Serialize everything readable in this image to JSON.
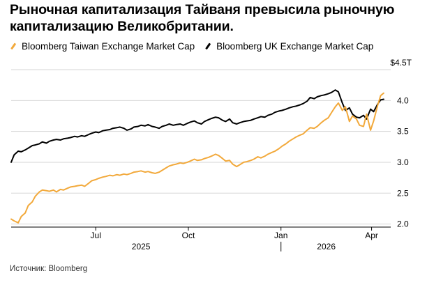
{
  "title": "Рыночная капитализация Тайваня превысила рыночную капитализацию Великобритании.",
  "source": "Источник: Bloomberg",
  "chart_data": {
    "type": "line",
    "title": "Рыночная капитализация Тайваня превысила рыночную капитализацию Великобритании.",
    "xlabel": "",
    "ylabel": "",
    "y_unit_label": "$4.5T",
    "ylim": [
      1.95,
      4.5
    ],
    "xlim": [
      "2025-04-08",
      "2026-04-20"
    ],
    "grid": true,
    "legend_position": "top-left",
    "x_ticks": [
      {
        "date": "2025-07-01",
        "label": "Jul"
      },
      {
        "date": "2025-10-01",
        "label": "Oct"
      },
      {
        "date": "2026-01-01",
        "label": "Jan"
      },
      {
        "date": "2026-04-01",
        "label": "Apr"
      }
    ],
    "x_years": [
      {
        "date": "2025-08-15",
        "label": "2025"
      },
      {
        "date": "2026-02-15",
        "label": "2026"
      }
    ],
    "y_ticks": [
      {
        "value": 4.0,
        "label": "4.0"
      },
      {
        "value": 3.5,
        "label": "3.5"
      },
      {
        "value": 3.0,
        "label": "3.0"
      },
      {
        "value": 2.5,
        "label": "2.5"
      },
      {
        "value": 2.0,
        "label": "2.0"
      }
    ],
    "series": [
      {
        "name": "Bloomberg Taiwan Exchange Market Cap",
        "color": "#f2a93b",
        "points": [
          [
            "2025-04-08",
            2.08
          ],
          [
            "2025-04-11",
            2.05
          ],
          [
            "2025-04-15",
            2.02
          ],
          [
            "2025-04-18",
            2.12
          ],
          [
            "2025-04-22",
            2.18
          ],
          [
            "2025-04-25",
            2.3
          ],
          [
            "2025-04-29",
            2.36
          ],
          [
            "2025-05-02",
            2.45
          ],
          [
            "2025-05-06",
            2.52
          ],
          [
            "2025-05-09",
            2.55
          ],
          [
            "2025-05-13",
            2.54
          ],
          [
            "2025-05-16",
            2.53
          ],
          [
            "2025-05-20",
            2.55
          ],
          [
            "2025-05-23",
            2.52
          ],
          [
            "2025-05-27",
            2.56
          ],
          [
            "2025-05-30",
            2.55
          ],
          [
            "2025-06-03",
            2.58
          ],
          [
            "2025-06-06",
            2.6
          ],
          [
            "2025-06-10",
            2.61
          ],
          [
            "2025-06-13",
            2.62
          ],
          [
            "2025-06-17",
            2.63
          ],
          [
            "2025-06-20",
            2.61
          ],
          [
            "2025-06-24",
            2.66
          ],
          [
            "2025-06-27",
            2.7
          ],
          [
            "2025-07-01",
            2.72
          ],
          [
            "2025-07-04",
            2.74
          ],
          [
            "2025-07-08",
            2.76
          ],
          [
            "2025-07-11",
            2.77
          ],
          [
            "2025-07-15",
            2.79
          ],
          [
            "2025-07-18",
            2.78
          ],
          [
            "2025-07-22",
            2.8
          ],
          [
            "2025-07-25",
            2.79
          ],
          [
            "2025-07-29",
            2.81
          ],
          [
            "2025-08-01",
            2.8
          ],
          [
            "2025-08-05",
            2.82
          ],
          [
            "2025-08-08",
            2.84
          ],
          [
            "2025-08-12",
            2.85
          ],
          [
            "2025-08-15",
            2.86
          ],
          [
            "2025-08-19",
            2.84
          ],
          [
            "2025-08-22",
            2.85
          ],
          [
            "2025-08-26",
            2.83
          ],
          [
            "2025-08-29",
            2.82
          ],
          [
            "2025-09-02",
            2.84
          ],
          [
            "2025-09-05",
            2.87
          ],
          [
            "2025-09-09",
            2.91
          ],
          [
            "2025-09-12",
            2.94
          ],
          [
            "2025-09-16",
            2.96
          ],
          [
            "2025-09-19",
            2.97
          ],
          [
            "2025-09-23",
            2.99
          ],
          [
            "2025-09-26",
            2.98
          ],
          [
            "2025-09-30",
            3.0
          ],
          [
            "2025-10-03",
            3.02
          ],
          [
            "2025-10-07",
            3.05
          ],
          [
            "2025-10-10",
            3.03
          ],
          [
            "2025-10-14",
            3.04
          ],
          [
            "2025-10-17",
            3.06
          ],
          [
            "2025-10-21",
            3.08
          ],
          [
            "2025-10-24",
            3.1
          ],
          [
            "2025-10-28",
            3.13
          ],
          [
            "2025-10-31",
            3.11
          ],
          [
            "2025-11-04",
            3.06
          ],
          [
            "2025-11-07",
            3.02
          ],
          [
            "2025-11-11",
            3.03
          ],
          [
            "2025-11-14",
            2.97
          ],
          [
            "2025-11-18",
            2.93
          ],
          [
            "2025-11-21",
            2.96
          ],
          [
            "2025-11-25",
            3.0
          ],
          [
            "2025-11-28",
            3.01
          ],
          [
            "2025-12-02",
            3.03
          ],
          [
            "2025-12-05",
            3.05
          ],
          [
            "2025-12-09",
            3.09
          ],
          [
            "2025-12-12",
            3.07
          ],
          [
            "2025-12-16",
            3.1
          ],
          [
            "2025-12-19",
            3.13
          ],
          [
            "2025-12-23",
            3.16
          ],
          [
            "2025-12-26",
            3.18
          ],
          [
            "2025-12-30",
            3.22
          ],
          [
            "2026-01-02",
            3.26
          ],
          [
            "2026-01-06",
            3.3
          ],
          [
            "2026-01-09",
            3.34
          ],
          [
            "2026-01-13",
            3.38
          ],
          [
            "2026-01-16",
            3.41
          ],
          [
            "2026-01-20",
            3.44
          ],
          [
            "2026-01-23",
            3.46
          ],
          [
            "2026-01-27",
            3.52
          ],
          [
            "2026-01-30",
            3.56
          ],
          [
            "2026-02-03",
            3.55
          ],
          [
            "2026-02-06",
            3.58
          ],
          [
            "2026-02-10",
            3.64
          ],
          [
            "2026-02-13",
            3.68
          ],
          [
            "2026-02-17",
            3.72
          ],
          [
            "2026-02-20",
            3.8
          ],
          [
            "2026-02-24",
            3.9
          ],
          [
            "2026-02-27",
            3.96
          ],
          [
            "2026-03-03",
            3.84
          ],
          [
            "2026-03-06",
            3.9
          ],
          [
            "2026-03-10",
            3.66
          ],
          [
            "2026-03-13",
            3.75
          ],
          [
            "2026-03-17",
            3.7
          ],
          [
            "2026-03-20",
            3.6
          ],
          [
            "2026-03-24",
            3.58
          ],
          [
            "2026-03-27",
            3.78
          ],
          [
            "2026-03-31",
            3.52
          ],
          [
            "2026-04-03",
            3.67
          ],
          [
            "2026-04-07",
            3.92
          ],
          [
            "2026-04-10",
            4.08
          ],
          [
            "2026-04-13",
            4.12
          ]
        ]
      },
      {
        "name": "Bloomberg UK Exchange Market Cap",
        "color": "#000000",
        "points": [
          [
            "2025-04-08",
            3.0
          ],
          [
            "2025-04-11",
            3.12
          ],
          [
            "2025-04-15",
            3.18
          ],
          [
            "2025-04-18",
            3.17
          ],
          [
            "2025-04-22",
            3.2
          ],
          [
            "2025-04-25",
            3.23
          ],
          [
            "2025-04-29",
            3.27
          ],
          [
            "2025-05-02",
            3.28
          ],
          [
            "2025-05-06",
            3.3
          ],
          [
            "2025-05-09",
            3.33
          ],
          [
            "2025-05-13",
            3.31
          ],
          [
            "2025-05-16",
            3.34
          ],
          [
            "2025-05-20",
            3.36
          ],
          [
            "2025-05-23",
            3.37
          ],
          [
            "2025-05-27",
            3.36
          ],
          [
            "2025-05-30",
            3.38
          ],
          [
            "2025-06-03",
            3.39
          ],
          [
            "2025-06-06",
            3.4
          ],
          [
            "2025-06-10",
            3.42
          ],
          [
            "2025-06-13",
            3.41
          ],
          [
            "2025-06-17",
            3.43
          ],
          [
            "2025-06-20",
            3.42
          ],
          [
            "2025-06-24",
            3.45
          ],
          [
            "2025-06-27",
            3.47
          ],
          [
            "2025-07-01",
            3.49
          ],
          [
            "2025-07-04",
            3.48
          ],
          [
            "2025-07-08",
            3.51
          ],
          [
            "2025-07-11",
            3.52
          ],
          [
            "2025-07-15",
            3.53
          ],
          [
            "2025-07-18",
            3.55
          ],
          [
            "2025-07-22",
            3.56
          ],
          [
            "2025-07-25",
            3.57
          ],
          [
            "2025-07-29",
            3.55
          ],
          [
            "2025-08-01",
            3.52
          ],
          [
            "2025-08-05",
            3.54
          ],
          [
            "2025-08-08",
            3.57
          ],
          [
            "2025-08-12",
            3.58
          ],
          [
            "2025-08-15",
            3.6
          ],
          [
            "2025-08-19",
            3.59
          ],
          [
            "2025-08-22",
            3.61
          ],
          [
            "2025-08-26",
            3.58
          ],
          [
            "2025-08-29",
            3.57
          ],
          [
            "2025-09-02",
            3.55
          ],
          [
            "2025-09-05",
            3.58
          ],
          [
            "2025-09-09",
            3.6
          ],
          [
            "2025-09-12",
            3.62
          ],
          [
            "2025-09-16",
            3.6
          ],
          [
            "2025-09-19",
            3.61
          ],
          [
            "2025-09-23",
            3.62
          ],
          [
            "2025-09-26",
            3.6
          ],
          [
            "2025-09-30",
            3.63
          ],
          [
            "2025-10-03",
            3.65
          ],
          [
            "2025-10-07",
            3.67
          ],
          [
            "2025-10-10",
            3.64
          ],
          [
            "2025-10-14",
            3.62
          ],
          [
            "2025-10-17",
            3.66
          ],
          [
            "2025-10-21",
            3.69
          ],
          [
            "2025-10-24",
            3.71
          ],
          [
            "2025-10-28",
            3.73
          ],
          [
            "2025-10-31",
            3.72
          ],
          [
            "2025-11-04",
            3.68
          ],
          [
            "2025-11-07",
            3.66
          ],
          [
            "2025-11-11",
            3.7
          ],
          [
            "2025-11-14",
            3.64
          ],
          [
            "2025-11-18",
            3.62
          ],
          [
            "2025-11-21",
            3.64
          ],
          [
            "2025-11-25",
            3.66
          ],
          [
            "2025-11-28",
            3.67
          ],
          [
            "2025-12-02",
            3.68
          ],
          [
            "2025-12-05",
            3.7
          ],
          [
            "2025-12-09",
            3.72
          ],
          [
            "2025-12-12",
            3.74
          ],
          [
            "2025-12-16",
            3.73
          ],
          [
            "2025-12-19",
            3.76
          ],
          [
            "2025-12-23",
            3.78
          ],
          [
            "2025-12-26",
            3.81
          ],
          [
            "2025-12-30",
            3.83
          ],
          [
            "2026-01-02",
            3.84
          ],
          [
            "2026-01-06",
            3.86
          ],
          [
            "2026-01-09",
            3.88
          ],
          [
            "2026-01-13",
            3.9
          ],
          [
            "2026-01-16",
            3.91
          ],
          [
            "2026-01-20",
            3.93
          ],
          [
            "2026-01-23",
            3.95
          ],
          [
            "2026-01-27",
            3.99
          ],
          [
            "2026-01-30",
            4.05
          ],
          [
            "2026-02-03",
            4.03
          ],
          [
            "2026-02-06",
            4.06
          ],
          [
            "2026-02-10",
            4.08
          ],
          [
            "2026-02-13",
            4.09
          ],
          [
            "2026-02-17",
            4.11
          ],
          [
            "2026-02-20",
            4.13
          ],
          [
            "2026-02-24",
            4.17
          ],
          [
            "2026-02-27",
            4.14
          ],
          [
            "2026-03-03",
            3.96
          ],
          [
            "2026-03-06",
            3.84
          ],
          [
            "2026-03-10",
            3.88
          ],
          [
            "2026-03-13",
            3.78
          ],
          [
            "2026-03-17",
            3.73
          ],
          [
            "2026-03-20",
            3.72
          ],
          [
            "2026-03-24",
            3.76
          ],
          [
            "2026-03-27",
            3.7
          ],
          [
            "2026-03-31",
            3.86
          ],
          [
            "2026-04-03",
            3.82
          ],
          [
            "2026-04-07",
            3.94
          ],
          [
            "2026-04-10",
            4.01
          ],
          [
            "2026-04-13",
            4.02
          ]
        ]
      }
    ]
  }
}
